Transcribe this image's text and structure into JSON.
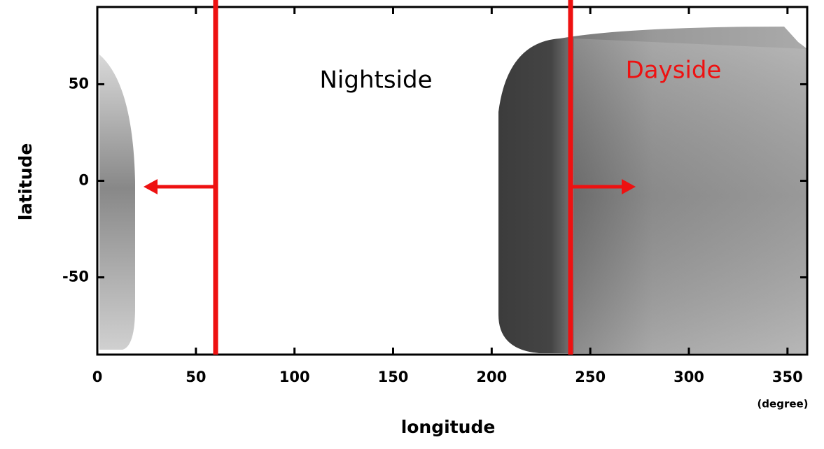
{
  "chart_data": {
    "type": "image",
    "xlabel": "longitude",
    "ylabel": "latitude",
    "xunit": "(degree)",
    "xlim": [
      0,
      360
    ],
    "xticks": [
      0,
      50,
      100,
      150,
      200,
      250,
      300,
      350
    ],
    "ylim": [
      -90,
      90
    ],
    "yticks": [
      -50,
      0,
      50
    ],
    "vlines": [
      60,
      240
    ],
    "vline_color": "#ee1111",
    "annotations": [
      {
        "text": "Nightside",
        "color": "#000000"
      },
      {
        "text": "Dayside",
        "color": "#ee1111"
      }
    ]
  }
}
